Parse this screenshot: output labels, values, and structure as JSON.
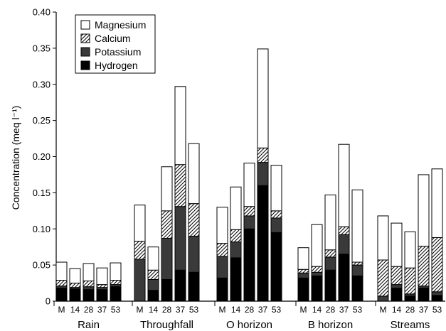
{
  "chart_data": {
    "type": "bar",
    "stacked": true,
    "ylabel": "Concentration (meq l⁻¹)",
    "ylim": [
      0,
      0.4
    ],
    "yticks": [
      "0",
      "0.05",
      "0.10",
      "0.15",
      "0.20",
      "0.25",
      "0.30",
      "0.35",
      "0.40"
    ],
    "legend_position": "top-left",
    "groups": [
      "Rain",
      "Throughfall",
      "O horizon",
      "B horizon",
      "Streams"
    ],
    "subcategories": [
      "M",
      "14",
      "28",
      "37",
      "53"
    ],
    "series": [
      {
        "name": "Hydrogen",
        "fill": "solid",
        "color": "#000000",
        "values": [
          [
            0.018,
            0.017,
            0.016,
            0.016,
            0.02
          ],
          [
            0.0,
            0.015,
            0.03,
            0.043,
            0.04
          ],
          [
            0.032,
            0.06,
            0.1,
            0.16,
            0.095
          ],
          [
            0.032,
            0.035,
            0.043,
            0.065,
            0.035
          ],
          [
            0.0,
            0.018,
            0.007,
            0.018,
            0.008
          ]
        ]
      },
      {
        "name": "Potassium",
        "fill": "gray",
        "color": "#3a3a3a",
        "values": [
          [
            0.003,
            0.002,
            0.004,
            0.003,
            0.003
          ],
          [
            0.058,
            0.015,
            0.057,
            0.088,
            0.05
          ],
          [
            0.03,
            0.022,
            0.018,
            0.032,
            0.02
          ],
          [
            0.007,
            0.005,
            0.018,
            0.027,
            0.015
          ],
          [
            0.007,
            0.005,
            0.003,
            0.003,
            0.005
          ]
        ]
      },
      {
        "name": "Calcium",
        "fill": "hatch",
        "color": "#000000",
        "values": [
          [
            0.008,
            0.006,
            0.008,
            0.004,
            0.006
          ],
          [
            0.025,
            0.013,
            0.038,
            0.058,
            0.045
          ],
          [
            0.018,
            0.017,
            0.013,
            0.02,
            0.01
          ],
          [
            0.005,
            0.008,
            0.01,
            0.011,
            0.004
          ],
          [
            0.05,
            0.025,
            0.036,
            0.055,
            0.075
          ]
        ]
      },
      {
        "name": "Magnesium",
        "fill": "white",
        "color": "#ffffff",
        "values": [
          [
            0.025,
            0.02,
            0.024,
            0.023,
            0.024
          ],
          [
            0.05,
            0.032,
            0.061,
            0.108,
            0.083
          ],
          [
            0.05,
            0.059,
            0.06,
            0.137,
            0.063
          ],
          [
            0.03,
            0.058,
            0.076,
            0.114,
            0.1
          ],
          [
            0.061,
            0.06,
            0.05,
            0.099,
            0.095
          ]
        ]
      }
    ]
  }
}
